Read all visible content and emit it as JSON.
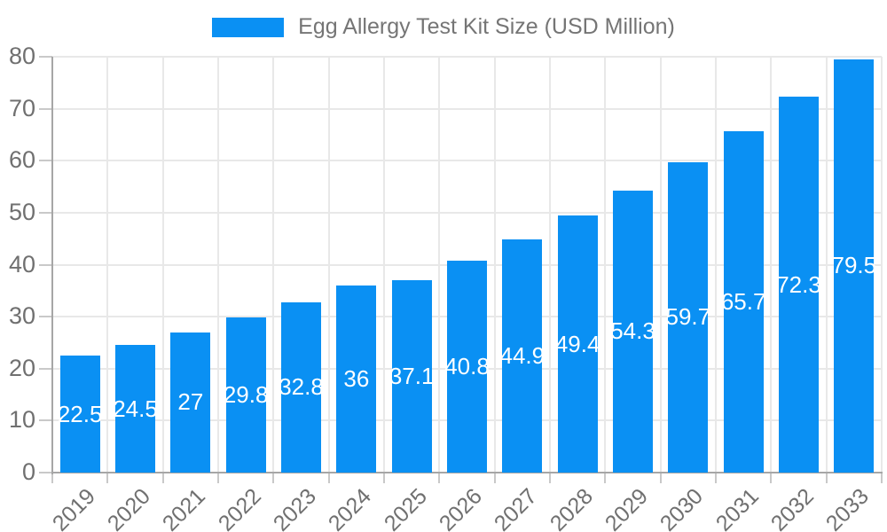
{
  "legend": {
    "label": "Egg Allergy Test Kit Size (USD Million)"
  },
  "chart_data": {
    "type": "bar",
    "title": "Egg Allergy Test Kit Size (USD Million)",
    "categories": [
      "2019",
      "2020",
      "2021",
      "2022",
      "2023",
      "2024",
      "2025",
      "2026",
      "2027",
      "2028",
      "2029",
      "2030",
      "2031",
      "2032",
      "2033"
    ],
    "values": [
      22.5,
      24.5,
      27,
      29.8,
      32.8,
      36,
      37.1,
      40.8,
      44.9,
      49.4,
      54.3,
      59.7,
      65.7,
      72.3,
      79.5
    ],
    "value_labels": [
      "22.5",
      "24.5",
      "27",
      "29.8",
      "32.8",
      "36",
      "37.1",
      "40.8",
      "44.9",
      "49.4",
      "54.3",
      "59.7",
      "65.7",
      "72.3",
      "79.5"
    ],
    "xlabel": "",
    "ylabel": "",
    "ylim": [
      0,
      80
    ],
    "yticks": [
      0,
      10,
      20,
      30,
      40,
      50,
      60,
      70,
      80
    ],
    "grid": true,
    "legend_position": "top",
    "colors": {
      "bar": "#0a90f3",
      "bar_label": "#ffffff",
      "grid": "#e8e8e8",
      "axis": "#a6a6a6",
      "tick_mark": "#c9c9c9",
      "tick_text": "#707070",
      "title_text": "#757575",
      "background": "#ffffff"
    }
  }
}
